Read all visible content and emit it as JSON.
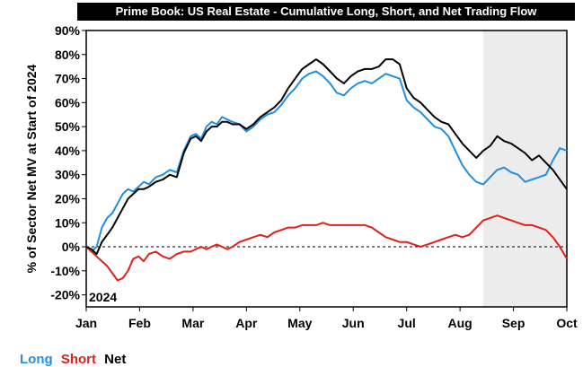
{
  "chart_data": {
    "type": "line",
    "title": "Prime Book: US Real Estate - Cumulative Long, Short, and Net Trading Flow",
    "ylabel": "% of Sector Net MV at Start of 2024",
    "xlabel": "",
    "year_label": "2024",
    "ylim": [
      -25,
      90
    ],
    "y_ticks": [
      90,
      80,
      70,
      60,
      50,
      40,
      30,
      20,
      10,
      0,
      -10,
      -20
    ],
    "y_tick_labels": [
      "90%",
      "80%",
      "70%",
      "60%",
      "50%",
      "40%",
      "30%",
      "20%",
      "10%",
      "0%",
      "-10%",
      "-20%"
    ],
    "x_ticks": [
      "Jan",
      "Feb",
      "Mar",
      "Apr",
      "May",
      "Jun",
      "Jul",
      "Aug",
      "Sep",
      "Oct"
    ],
    "xlim_days": [
      0,
      276
    ],
    "shaded_region_days": [
      228,
      276
    ],
    "zero_line": "dashed",
    "series": [
      {
        "name": "Long",
        "color": "#1f8fe0",
        "x": [
          0,
          3,
          6,
          9,
          12,
          15,
          18,
          21,
          24,
          27,
          30,
          33,
          36,
          40,
          44,
          48,
          52,
          56,
          60,
          63,
          66,
          69,
          72,
          75,
          78,
          81,
          84,
          88,
          92,
          96,
          100,
          104,
          108,
          112,
          116,
          120,
          124,
          128,
          132,
          136,
          140,
          144,
          148,
          152,
          156,
          160,
          164,
          168,
          172,
          176,
          180,
          184,
          188,
          192,
          196,
          200,
          204,
          208,
          212,
          216,
          220,
          224,
          228,
          232,
          236,
          240,
          244,
          248,
          252,
          256,
          260,
          264,
          268,
          272,
          276
        ],
        "values": [
          0,
          -2,
          0,
          8,
          12,
          14,
          18,
          22,
          24,
          23,
          25,
          27,
          26,
          29,
          30,
          32,
          31,
          40,
          46,
          47,
          45,
          50,
          52,
          51,
          54,
          53,
          52,
          51,
          48,
          50,
          53,
          55,
          56,
          59,
          63,
          66,
          70,
          72,
          73,
          71,
          68,
          64,
          63,
          66,
          68,
          69,
          68,
          70,
          72,
          71,
          70,
          61,
          58,
          56,
          53,
          50,
          49,
          46,
          40,
          34,
          30,
          27,
          26,
          29,
          32,
          33,
          31,
          30,
          27,
          28,
          29,
          30,
          36,
          41,
          40
        ]
      },
      {
        "name": "Short",
        "color": "#e0201b",
        "x": [
          0,
          3,
          6,
          9,
          12,
          15,
          18,
          21,
          24,
          27,
          30,
          33,
          36,
          40,
          44,
          48,
          52,
          56,
          60,
          63,
          66,
          69,
          72,
          75,
          78,
          81,
          84,
          88,
          92,
          96,
          100,
          104,
          108,
          112,
          116,
          120,
          124,
          128,
          132,
          136,
          140,
          144,
          148,
          152,
          156,
          160,
          164,
          168,
          172,
          176,
          180,
          184,
          188,
          192,
          196,
          200,
          204,
          208,
          212,
          216,
          220,
          224,
          228,
          232,
          236,
          240,
          244,
          248,
          252,
          256,
          260,
          264,
          268,
          272,
          276
        ],
        "values": [
          0,
          -2,
          -4,
          -6,
          -8,
          -11,
          -14,
          -13,
          -10,
          -5,
          -4,
          -6,
          -3,
          -2,
          -4,
          -5,
          -3,
          -2,
          -2,
          -1,
          0,
          -1,
          0,
          1,
          0,
          -1,
          0,
          2,
          3,
          4,
          5,
          4,
          6,
          7,
          8,
          8,
          9,
          9,
          9,
          10,
          9,
          9,
          9,
          9,
          9,
          9,
          8,
          6,
          4,
          3,
          2,
          2,
          1,
          0,
          1,
          2,
          3,
          4,
          5,
          4,
          5,
          8,
          11,
          12,
          13,
          12,
          11,
          10,
          9,
          9,
          8,
          7,
          4,
          0,
          -5
        ]
      },
      {
        "name": "Net",
        "color": "#000000",
        "x": [
          0,
          3,
          6,
          9,
          12,
          15,
          18,
          21,
          24,
          27,
          30,
          33,
          36,
          40,
          44,
          48,
          52,
          56,
          60,
          63,
          66,
          69,
          72,
          75,
          78,
          81,
          84,
          88,
          92,
          96,
          100,
          104,
          108,
          112,
          116,
          120,
          124,
          128,
          132,
          136,
          140,
          144,
          148,
          152,
          156,
          160,
          164,
          168,
          172,
          176,
          180,
          184,
          188,
          192,
          196,
          200,
          204,
          208,
          212,
          216,
          220,
          224,
          228,
          232,
          236,
          240,
          244,
          248,
          252,
          256,
          260,
          264,
          268,
          272,
          276
        ],
        "values": [
          0,
          -1,
          -3,
          2,
          5,
          8,
          12,
          16,
          20,
          22,
          24,
          24,
          25,
          27,
          28,
          30,
          29,
          39,
          45,
          46,
          44,
          48,
          50,
          50,
          52,
          52,
          51,
          51,
          49,
          51,
          54,
          56,
          58,
          61,
          66,
          70,
          74,
          76,
          78,
          76,
          73,
          70,
          68,
          71,
          73,
          74,
          74,
          75,
          78,
          78,
          76,
          66,
          62,
          60,
          57,
          54,
          52,
          51,
          47,
          43,
          40,
          37,
          40,
          42,
          46,
          44,
          43,
          41,
          39,
          36,
          38,
          35,
          32,
          28,
          24
        ]
      }
    ],
    "legend": [
      {
        "label": "Long",
        "color": "#1f8fe0"
      },
      {
        "label": "Short",
        "color": "#e0201b"
      },
      {
        "label": "Net",
        "color": "#000000"
      }
    ],
    "legend_position": "bottom-left"
  }
}
